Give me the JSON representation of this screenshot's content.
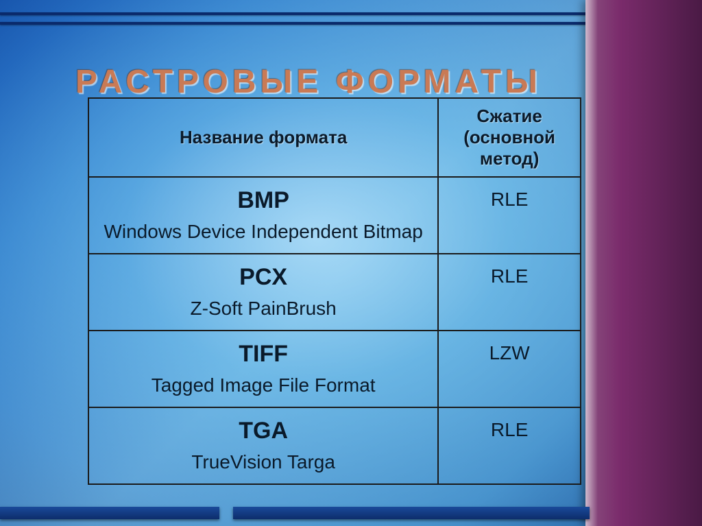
{
  "title": "РАСТРОВЫЕ ФОРМАТЫ",
  "table": {
    "headers": {
      "col1": "Название формата",
      "col2": "Сжатие (основной метод)"
    },
    "rows": [
      {
        "name": "BMP",
        "desc": "Windows Device Independent Bitmap",
        "compression": "RLE"
      },
      {
        "name": "PCX",
        "desc": "Z-Soft PainBrush",
        "compression": "RLE"
      },
      {
        "name": "TIFF",
        "desc": "Tagged Image File Format",
        "compression": "LZW"
      },
      {
        "name": "TGA",
        "desc": "TrueVision Targa",
        "compression": "RLE"
      }
    ]
  },
  "style": {
    "title_color": "#c97a55",
    "title_fontsize": 48,
    "border_color": "#1a1a1a",
    "text_color": "#0a1a2a",
    "header_fontsize": 26,
    "format_name_fontsize": 34,
    "format_desc_fontsize": 28,
    "compression_fontsize": 28,
    "background_gradient": [
      "#1a5bb8",
      "#3d8cd6",
      "#7cc0e8",
      "#5ba8d8",
      "#2d6fb0"
    ],
    "side_panel_gradient": [
      "#8a5080",
      "#7a2b6b",
      "#4a1a45"
    ],
    "rule_color": "#0a2a6b",
    "col1_width": 512,
    "col2_width": 208
  }
}
